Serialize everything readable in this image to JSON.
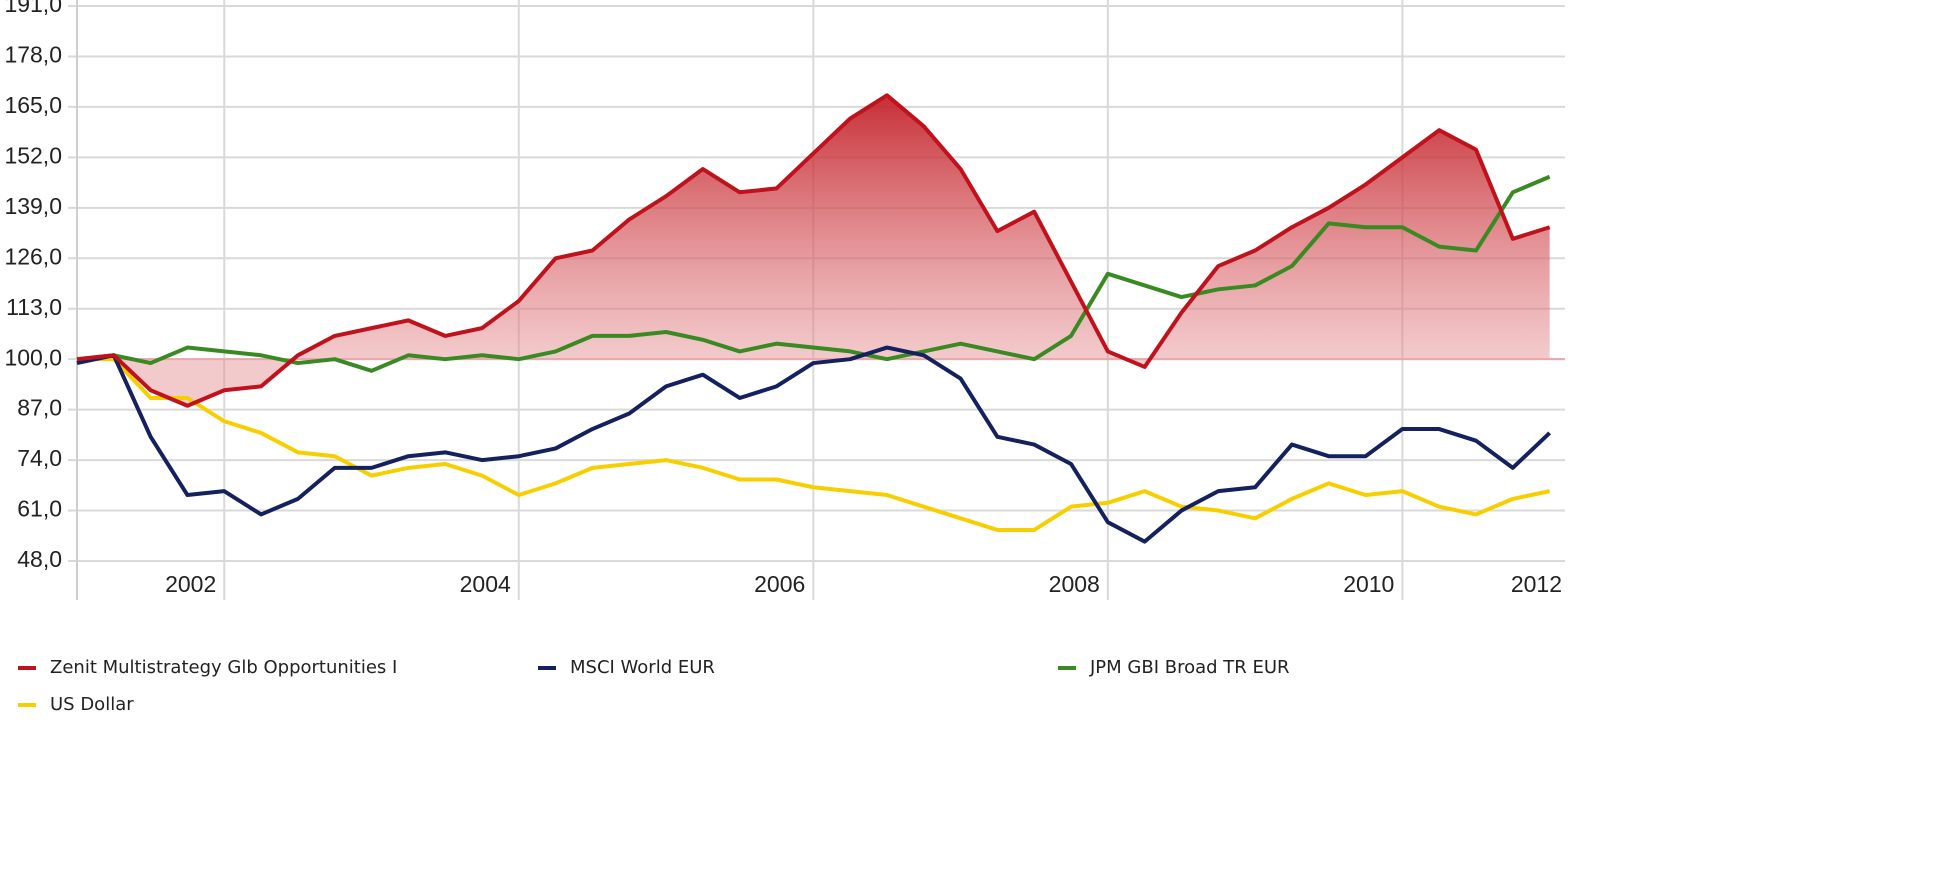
{
  "chart_data": {
    "type": "line",
    "x": [
      2001,
      2001.25,
      2001.5,
      2001.75,
      2002,
      2002.25,
      2002.5,
      2002.75,
      2003,
      2003.25,
      2003.5,
      2003.75,
      2004,
      2004.25,
      2004.5,
      2004.75,
      2005,
      2005.25,
      2005.5,
      2005.75,
      2006,
      2006.25,
      2006.5,
      2006.75,
      2007,
      2007.25,
      2007.5,
      2007.75,
      2008,
      2008.25,
      2008.5,
      2008.75,
      2009,
      2009.25,
      2009.5,
      2009.75,
      2010,
      2010.25,
      2010.5,
      2010.75,
      2011
    ],
    "series": [
      {
        "name": "Zenit Multistrategy Glb Opportunities I",
        "color": "#c0121c",
        "values": [
          100,
          101,
          92,
          88,
          92,
          93,
          101,
          106,
          108,
          110,
          106,
          108,
          115,
          126,
          128,
          136,
          142,
          149,
          143,
          144,
          153,
          162,
          168,
          160,
          149,
          133,
          138,
          120,
          102,
          98,
          112,
          124,
          128,
          134,
          139,
          145,
          152,
          159,
          154,
          131,
          134
        ]
      },
      {
        "name": "MSCI World EUR",
        "color": "#14215e",
        "values": [
          99,
          101,
          80,
          65,
          66,
          60,
          64,
          72,
          72,
          75,
          76,
          74,
          75,
          77,
          82,
          86,
          93,
          96,
          90,
          93,
          99,
          100,
          103,
          101,
          95,
          80,
          78,
          73,
          58,
          53,
          61,
          66,
          67,
          78,
          75,
          75,
          82,
          82,
          79,
          72,
          81
        ]
      },
      {
        "name": "JPM GBI Broad TR EUR",
        "color": "#3a8a23",
        "values": [
          100,
          101,
          99,
          103,
          102,
          101,
          99,
          100,
          97,
          101,
          100,
          101,
          100,
          102,
          106,
          106,
          107,
          105,
          102,
          104,
          103,
          102,
          100,
          102,
          104,
          102,
          100,
          106,
          122,
          119,
          116,
          118,
          119,
          124,
          135,
          134,
          134,
          129,
          128,
          143,
          147
        ]
      },
      {
        "name": "US Dollar",
        "color": "#f7cf00",
        "values": [
          100,
          100,
          90,
          90,
          84,
          81,
          76,
          75,
          70,
          72,
          73,
          70,
          65,
          68,
          72,
          73,
          74,
          72,
          69,
          69,
          67,
          66,
          65,
          62,
          59,
          56,
          56,
          62,
          63,
          66,
          62,
          61,
          59,
          64,
          68,
          65,
          66,
          62,
          60,
          64,
          66
        ]
      }
    ],
    "baseline": 100,
    "xlim": [
      2001,
      2011.05
    ],
    "xticks": [
      2002,
      2004,
      2006,
      2008,
      2010,
      2012
    ],
    "ylim": [
      48,
      191
    ],
    "yticks": [
      {
        "value": 48,
        "label": "48,0"
      },
      {
        "value": 61,
        "label": "61,0"
      },
      {
        "value": 74,
        "label": "74,0"
      },
      {
        "value": 87,
        "label": "87,0"
      },
      {
        "value": 100,
        "label": "100,0"
      },
      {
        "value": 113,
        "label": "113,0"
      },
      {
        "value": 126,
        "label": "126,0"
      },
      {
        "value": 139,
        "label": "139,0"
      },
      {
        "value": 152,
        "label": "152,0"
      },
      {
        "value": 165,
        "label": "165,0"
      },
      {
        "value": 178,
        "label": "178,0"
      },
      {
        "value": 191,
        "label": "191,0"
      }
    ],
    "grid": true,
    "legend": "bottom"
  }
}
